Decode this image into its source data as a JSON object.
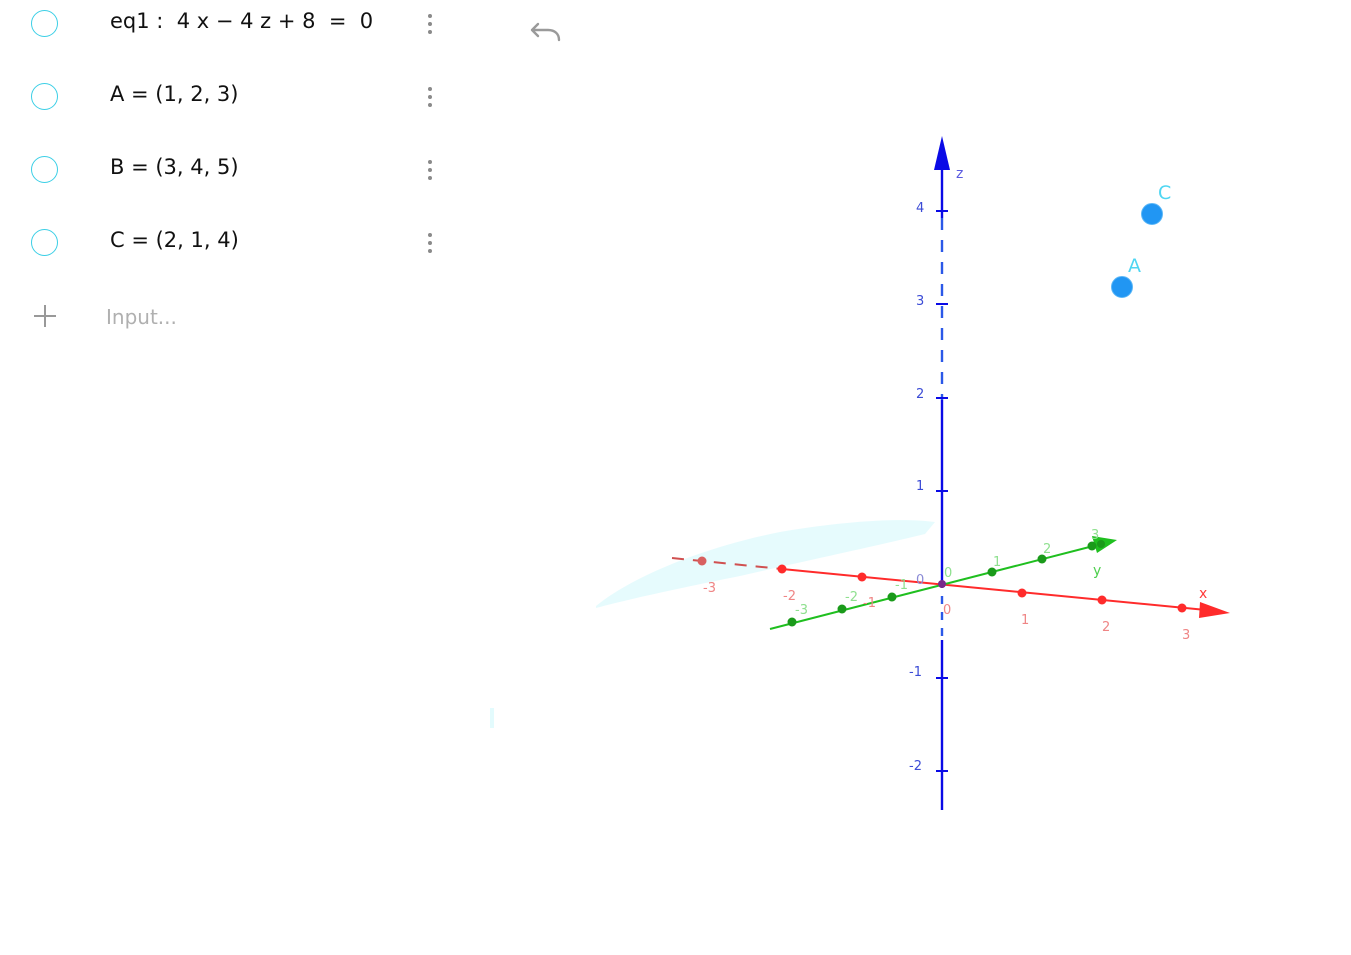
{
  "algebra": {
    "rows": [
      {
        "label": "eq1",
        "text": "eq1 :  4 x − 4 z + 8  =  0"
      },
      {
        "label": "A",
        "text": "A = (1, 2, 3)"
      },
      {
        "label": "B",
        "text": "B = (3, 4, 5)"
      },
      {
        "label": "C",
        "text": "C = (2, 1, 4)"
      }
    ],
    "input": {
      "placeholder": "Input..."
    }
  },
  "toolbar": {
    "undo_icon": "undo-icon"
  },
  "view3d": {
    "colors": {
      "x_axis": "#ff2b2b",
      "y_axis": "#1fbf1f",
      "z_axis": "#0a0ae6",
      "point": "#2196f3",
      "point_label": "#4fd6f2",
      "plane": "#e3fbfd"
    },
    "axes": {
      "x": {
        "label": "x",
        "ticks": [
          "-3",
          "-2",
          "-1",
          "0",
          "1",
          "2",
          "3"
        ]
      },
      "y": {
        "label": "y",
        "ticks": [
          "-3",
          "-2",
          "-1",
          "0",
          "1",
          "2",
          "3"
        ]
      },
      "z": {
        "label": "z",
        "ticks": [
          "-2",
          "-1",
          "0",
          "1",
          "2",
          "3",
          "4"
        ]
      }
    },
    "points": [
      {
        "name": "C",
        "label": "C"
      },
      {
        "name": "A",
        "label": "A"
      }
    ]
  }
}
